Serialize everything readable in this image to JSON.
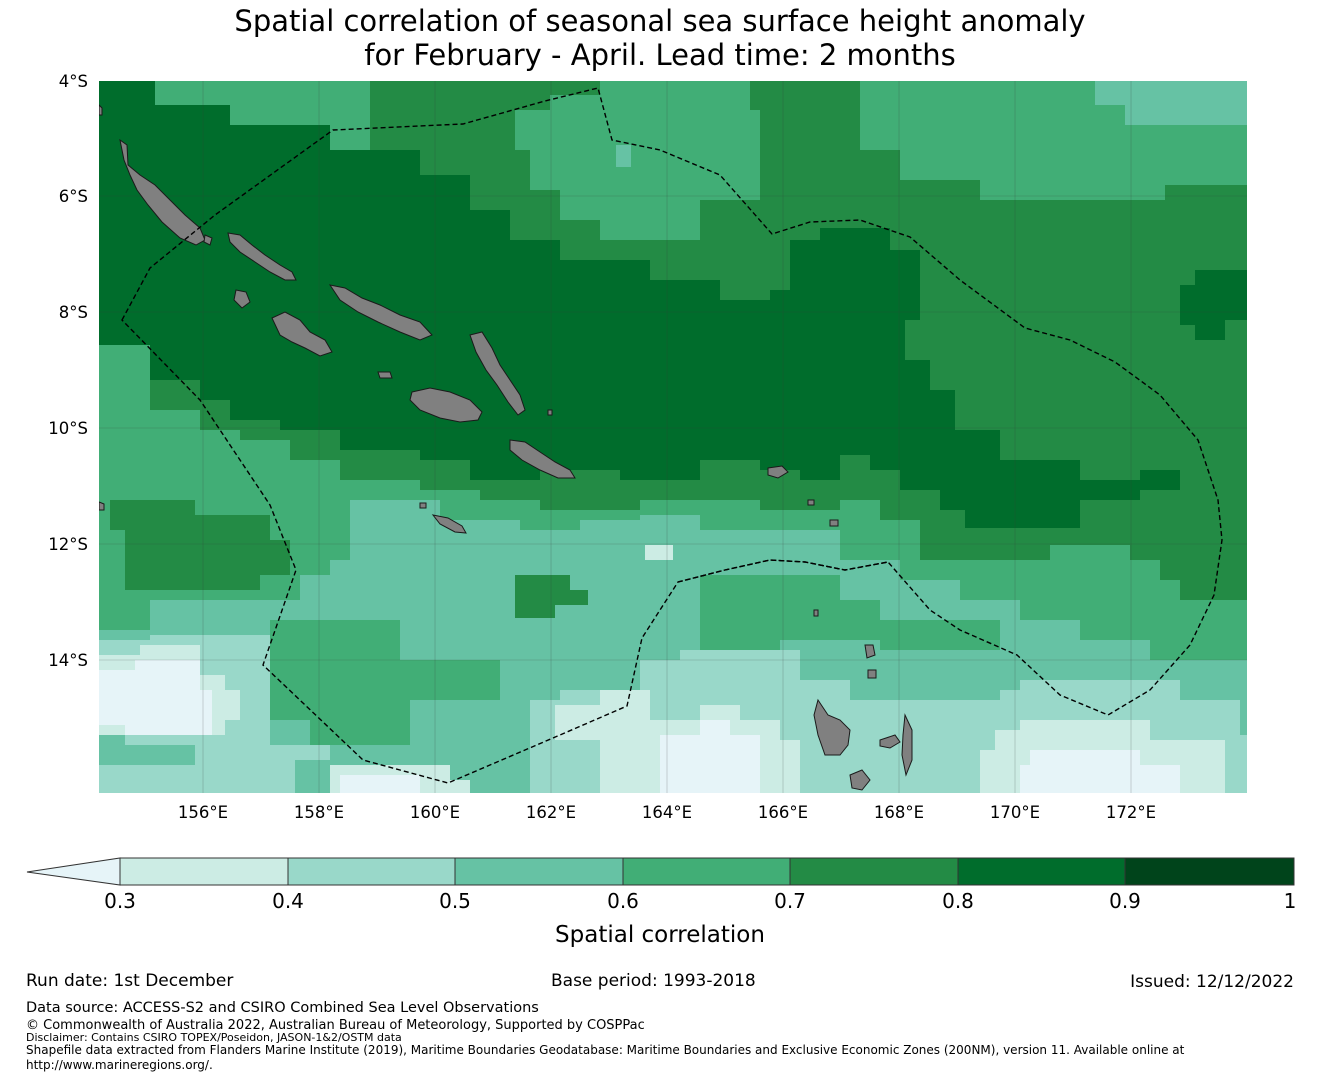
{
  "title_line1": "Spatial correlation of seasonal sea surface height anomaly",
  "title_line2": "for February - April. Lead time: 2 months",
  "map": {
    "lat_labels": [
      "4°S",
      "6°S",
      "8°S",
      "10°S",
      "12°S",
      "14°S"
    ],
    "lon_labels": [
      "156°E",
      "158°E",
      "160°E",
      "162°E",
      "164°E",
      "166°E",
      "168°E",
      "170°E",
      "172°E"
    ],
    "land_color": "#808080"
  },
  "colorbar": {
    "label": "Spatial correlation",
    "ticks": [
      "0.3",
      "0.4",
      "0.5",
      "0.6",
      "0.7",
      "0.8",
      "0.9",
      "1"
    ],
    "colors": [
      "#e6f4f8",
      "#ccece4",
      "#99d8c9",
      "#66c2a4",
      "#41ae76",
      "#238b45",
      "#006d2c",
      "#00441b"
    ]
  },
  "footer": {
    "run_date": "Run date: 1st December",
    "base_period": "Base period: 1993-2018",
    "issued": "Issued: 12/12/2022",
    "data_source": "Data source: ACCESS-S2 and CSIRO Combined Sea Level Observations",
    "copyright": "© Commonwealth of Australia 2022, Australian Bureau of Meteorology, Supported by COSPPac",
    "disclaimer": "Disclaimer: Contains CSIRO TOPEX/Poseidon, JASON-1&2/OSTM data",
    "shapefile_line1": "Shapefile data extracted from Flanders Marine Institute (2019), Maritime Boundaries Geodatabase: Maritime Boundaries and Exclusive Economic Zones (200NM), version 11. Available online at",
    "shapefile_line2": "http://www.marineregions.org/."
  }
}
